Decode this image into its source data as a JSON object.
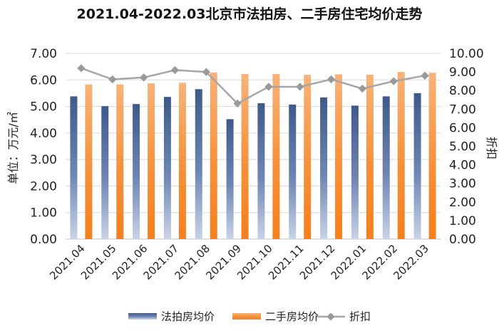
{
  "chart_data": {
    "type": "bar",
    "title": "2021.04-2022.03北京市法拍房、二手房住宅均价走势",
    "categories": [
      "2021.04",
      "2021.05",
      "2021.06",
      "2021.07",
      "2021.08",
      "2021.09",
      "2021.10",
      "2021.11",
      "2021.12",
      "2022.01",
      "2022.02",
      "2022.03"
    ],
    "ylabel": "单位：万元/㎡",
    "y2label": "折扣",
    "ylim": [
      0,
      7
    ],
    "y2lim": [
      0,
      10
    ],
    "yticks": [
      "0.00",
      "1.00",
      "2.00",
      "3.00",
      "4.00",
      "5.00",
      "6.00",
      "7.00"
    ],
    "y2ticks": [
      "0.00",
      "1.00",
      "2.00",
      "3.00",
      "4.00",
      "5.00",
      "6.00",
      "7.00",
      "8.00",
      "9.00",
      "10.00"
    ],
    "series": [
      {
        "name": "法拍房均价",
        "kind": "bar",
        "axis": "left",
        "color": "#4a6494",
        "values": [
          5.38,
          5.01,
          5.09,
          5.36,
          5.65,
          4.52,
          5.12,
          5.07,
          5.34,
          5.03,
          5.38,
          5.5
        ]
      },
      {
        "name": "二手房均价",
        "kind": "bar",
        "axis": "left",
        "color": "#f5913b",
        "values": [
          5.83,
          5.83,
          5.87,
          5.89,
          6.28,
          6.22,
          6.22,
          6.19,
          6.21,
          6.2,
          6.3,
          6.27
        ]
      },
      {
        "name": "折扣",
        "kind": "line",
        "axis": "right",
        "color": "#a6a6a6",
        "values": [
          9.2,
          8.6,
          8.7,
          9.1,
          9.0,
          7.3,
          8.2,
          8.2,
          8.6,
          8.1,
          8.5,
          8.8
        ]
      }
    ],
    "legend": "bottom",
    "grid": true
  }
}
